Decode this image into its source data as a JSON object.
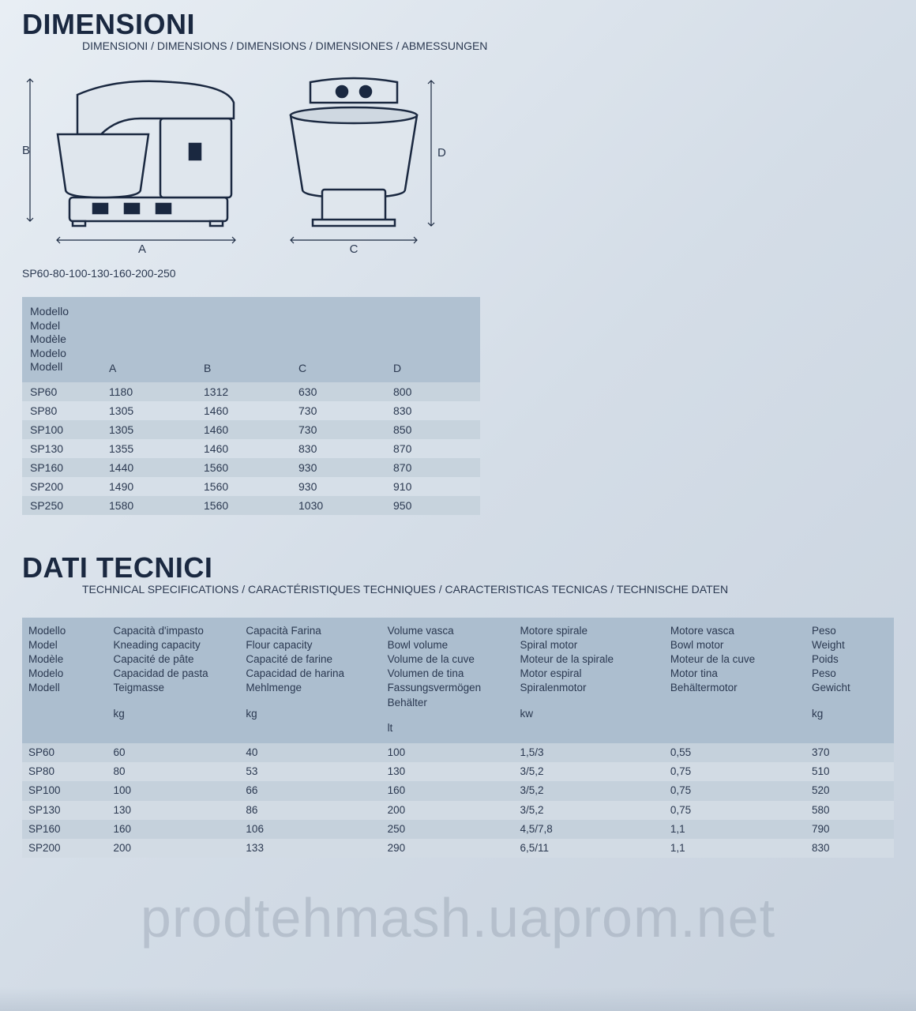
{
  "colors": {
    "text": "#1a2840",
    "subtext": "#2a3850",
    "header_bg_dims": "#b0c1d1",
    "row_odd_dims": "#c7d3dd",
    "row_even_dims": "#d6dfe8",
    "header_bg_tech": "#acbecf",
    "row_odd_tech": "#c5d1dc",
    "row_even_tech": "#d2dbe4",
    "page_bg_from": "#e8eef4",
    "page_bg_to": "#c8d2de",
    "watermark": "rgba(160,172,186,0.55)"
  },
  "dimensions_section": {
    "title": "DIMENSIONI",
    "subtitle": "DIMENSIONI / DIMENSIONS / DIMENSIONS / DIMENSIONES / ABMESSUNGEN",
    "diagram_labels": {
      "A": "A",
      "B": "B",
      "C": "C",
      "D": "D"
    },
    "models_caption": "SP60-80-100-130-160-200-250",
    "table": {
      "model_header_lines": [
        "Modello",
        "Model",
        "Modèle",
        "Modelo",
        "Modell"
      ],
      "columns": [
        "A",
        "B",
        "C",
        "D"
      ],
      "rows": [
        {
          "model": "SP60",
          "A": "1180",
          "B": "1312",
          "C": "630",
          "D": "800"
        },
        {
          "model": "SP80",
          "A": "1305",
          "B": "1460",
          "C": "730",
          "D": "830"
        },
        {
          "model": "SP100",
          "A": "1305",
          "B": "1460",
          "C": "730",
          "D": "850"
        },
        {
          "model": "SP130",
          "A": "1355",
          "B": "1460",
          "C": "830",
          "D": "870"
        },
        {
          "model": "SP160",
          "A": "1440",
          "B": "1560",
          "C": "930",
          "D": "870"
        },
        {
          "model": "SP200",
          "A": "1490",
          "B": "1560",
          "C": "930",
          "D": "910"
        },
        {
          "model": "SP250",
          "A": "1580",
          "B": "1560",
          "C": "1030",
          "D": "950"
        }
      ]
    }
  },
  "tech_section": {
    "title": "DATI TECNICI",
    "subtitle": "TECHNICAL SPECIFICATIONS / CARACTÉRISTIQUES TECHNIQUES / CARACTERISTICAS TECNICAS / TECHNISCHE DATEN",
    "table": {
      "headers": {
        "model": {
          "lines": [
            "Modello",
            "Model",
            "Modèle",
            "Modelo",
            "Modell"
          ],
          "unit": ""
        },
        "knead": {
          "lines": [
            "Capacità d'impasto",
            "Kneading capacity",
            "Capacité de pâte",
            "Capacidad de pasta",
            "Teigmasse"
          ],
          "unit": "kg"
        },
        "flour": {
          "lines": [
            "Capacità Farina",
            "Flour capacity",
            "Capacité de farine",
            "Capacidad de harina",
            "Mehlmenge"
          ],
          "unit": "kg"
        },
        "bowl": {
          "lines": [
            "Volume vasca",
            "Bowl volume",
            "Volume de la cuve",
            "Volumen de tina",
            "Fassungsvermögen",
            "Behälter"
          ],
          "unit": "lt"
        },
        "spiral": {
          "lines": [
            "Motore spirale",
            "Spiral motor",
            "Moteur de la spirale",
            "Motor espiral",
            "Spiralenmotor"
          ],
          "unit": "kw"
        },
        "bowlm": {
          "lines": [
            "Motore vasca",
            "Bowl motor",
            "Moteur de la cuve",
            "Motor tina",
            "Behältermotor"
          ],
          "unit": ""
        },
        "weight": {
          "lines": [
            "Peso",
            "Weight",
            "Poids",
            "Peso",
            "Gewicht"
          ],
          "unit": "kg"
        }
      },
      "rows": [
        {
          "model": "SP60",
          "knead": "60",
          "flour": "40",
          "bowl": "100",
          "spiral": "1,5/3",
          "bowlm": "0,55",
          "weight": "370"
        },
        {
          "model": "SP80",
          "knead": "80",
          "flour": "53",
          "bowl": "130",
          "spiral": "3/5,2",
          "bowlm": "0,75",
          "weight": "510"
        },
        {
          "model": "SP100",
          "knead": "100",
          "flour": "66",
          "bowl": "160",
          "spiral": "3/5,2",
          "bowlm": "0,75",
          "weight": "520"
        },
        {
          "model": "SP130",
          "knead": "130",
          "flour": "86",
          "bowl": "200",
          "spiral": "3/5,2",
          "bowlm": "0,75",
          "weight": "580"
        },
        {
          "model": "SP160",
          "knead": "160",
          "flour": "106",
          "bowl": "250",
          "spiral": "4,5/7,8",
          "bowlm": "1,1",
          "weight": "790"
        },
        {
          "model": "SP200",
          "knead": "200",
          "flour": "133",
          "bowl": "290",
          "spiral": "6,5/11",
          "bowlm": "1,1",
          "weight": "830"
        }
      ]
    }
  },
  "watermark": "prodtehmash.uaprom.net"
}
